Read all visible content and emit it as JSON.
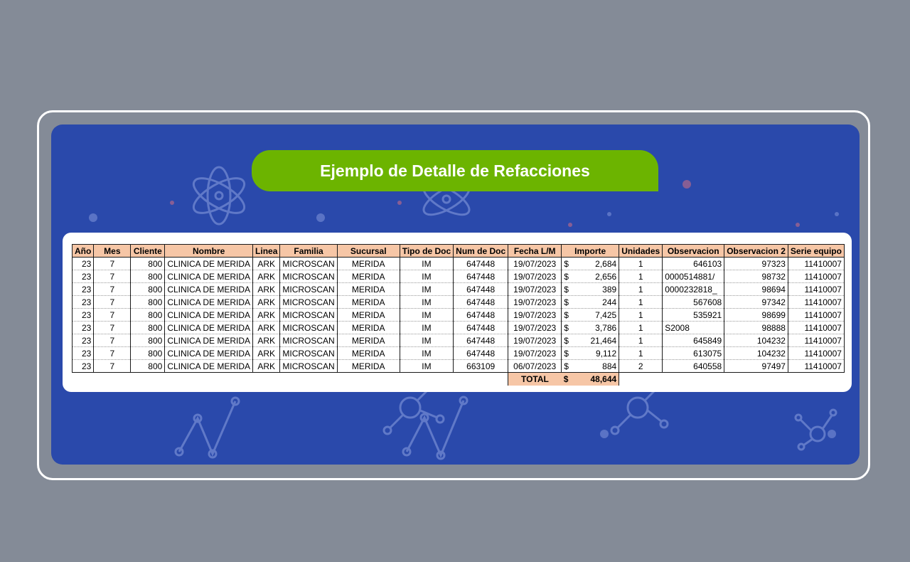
{
  "title": "Ejemplo de Detalle de Refacciones",
  "colors": {
    "background": "#848b97",
    "panel": "#2a49ab",
    "banner": "#6cb400",
    "header_fill": "#f6c6a6"
  },
  "decorative_icons": [
    "atom-icon",
    "molecule-icon",
    "line-graph-icon"
  ],
  "table": {
    "columns": [
      "Año",
      "Mes",
      "Cliente",
      "Nombre",
      "Linea",
      "Familia",
      "Sucursal",
      "Tipo de Doc",
      "Num de Doc",
      "Fecha L/M",
      "Importe",
      "Unidades",
      "Observacion",
      "Observacion 2",
      "Serie equipo"
    ],
    "rows": [
      {
        "anio": "23",
        "mes": "7",
        "cliente": "800",
        "nombre": "CLINICA DE MERIDA",
        "linea": "ARK",
        "familia": "MICROSCAN",
        "sucursal": "MERIDA",
        "tipo_doc": "IM",
        "num_doc": "647448",
        "fecha": "19/07/2023",
        "moneda": "$",
        "importe": "2,684",
        "unidades": "1",
        "observacion": "646103",
        "observacion2": "97323",
        "serie": "11410007"
      },
      {
        "anio": "23",
        "mes": "7",
        "cliente": "800",
        "nombre": "CLINICA DE MERIDA",
        "linea": "ARK",
        "familia": "MICROSCAN",
        "sucursal": "MERIDA",
        "tipo_doc": "IM",
        "num_doc": "647448",
        "fecha": "19/07/2023",
        "moneda": "$",
        "importe": "2,656",
        "unidades": "1",
        "observacion": "0000514881/",
        "observacion2": "98732",
        "serie": "11410007"
      },
      {
        "anio": "23",
        "mes": "7",
        "cliente": "800",
        "nombre": "CLINICA DE MERIDA",
        "linea": "ARK",
        "familia": "MICROSCAN",
        "sucursal": "MERIDA",
        "tipo_doc": "IM",
        "num_doc": "647448",
        "fecha": "19/07/2023",
        "moneda": "$",
        "importe": "389",
        "unidades": "1",
        "observacion": "0000232818_",
        "observacion2": "98694",
        "serie": "11410007"
      },
      {
        "anio": "23",
        "mes": "7",
        "cliente": "800",
        "nombre": "CLINICA DE MERIDA",
        "linea": "ARK",
        "familia": "MICROSCAN",
        "sucursal": "MERIDA",
        "tipo_doc": "IM",
        "num_doc": "647448",
        "fecha": "19/07/2023",
        "moneda": "$",
        "importe": "244",
        "unidades": "1",
        "observacion": "567608",
        "observacion2": "97342",
        "serie": "11410007"
      },
      {
        "anio": "23",
        "mes": "7",
        "cliente": "800",
        "nombre": "CLINICA DE MERIDA",
        "linea": "ARK",
        "familia": "MICROSCAN",
        "sucursal": "MERIDA",
        "tipo_doc": "IM",
        "num_doc": "647448",
        "fecha": "19/07/2023",
        "moneda": "$",
        "importe": "7,425",
        "unidades": "1",
        "observacion": "535921",
        "observacion2": "98699",
        "serie": "11410007"
      },
      {
        "anio": "23",
        "mes": "7",
        "cliente": "800",
        "nombre": "CLINICA DE MERIDA",
        "linea": "ARK",
        "familia": "MICROSCAN",
        "sucursal": "MERIDA",
        "tipo_doc": "IM",
        "num_doc": "647448",
        "fecha": "19/07/2023",
        "moneda": "$",
        "importe": "3,786",
        "unidades": "1",
        "observacion": "S2008",
        "observacion2": "98888",
        "serie": "11410007"
      },
      {
        "anio": "23",
        "mes": "7",
        "cliente": "800",
        "nombre": "CLINICA DE MERIDA",
        "linea": "ARK",
        "familia": "MICROSCAN",
        "sucursal": "MERIDA",
        "tipo_doc": "IM",
        "num_doc": "647448",
        "fecha": "19/07/2023",
        "moneda": "$",
        "importe": "21,464",
        "unidades": "1",
        "observacion": "645849",
        "observacion2": "104232",
        "serie": "11410007"
      },
      {
        "anio": "23",
        "mes": "7",
        "cliente": "800",
        "nombre": "CLINICA DE MERIDA",
        "linea": "ARK",
        "familia": "MICROSCAN",
        "sucursal": "MERIDA",
        "tipo_doc": "IM",
        "num_doc": "647448",
        "fecha": "19/07/2023",
        "moneda": "$",
        "importe": "9,112",
        "unidades": "1",
        "observacion": "613075",
        "observacion2": "104232",
        "serie": "11410007"
      },
      {
        "anio": "23",
        "mes": "7",
        "cliente": "800",
        "nombre": "CLINICA DE MERIDA",
        "linea": "ARK",
        "familia": "MICROSCAN",
        "sucursal": "MERIDA",
        "tipo_doc": "IM",
        "num_doc": "663109",
        "fecha": "06/07/2023",
        "moneda": "$",
        "importe": "884",
        "unidades": "2",
        "observacion": "640558",
        "observacion2": "97497",
        "serie": "11410007"
      }
    ],
    "total": {
      "label": "TOTAL",
      "moneda": "$",
      "value": "48,644"
    }
  }
}
